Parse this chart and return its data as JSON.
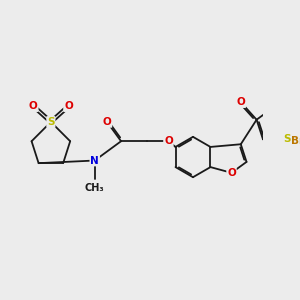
{
  "bg_color": "#ececec",
  "C": "#1a1a1a",
  "N": "#0000dd",
  "O": "#dd0000",
  "S": "#bbbb00",
  "Br": "#bb7700",
  "bond": "#1a1a1a",
  "lw": 1.3,
  "fs": 7.5,
  "doff": 0.055
}
